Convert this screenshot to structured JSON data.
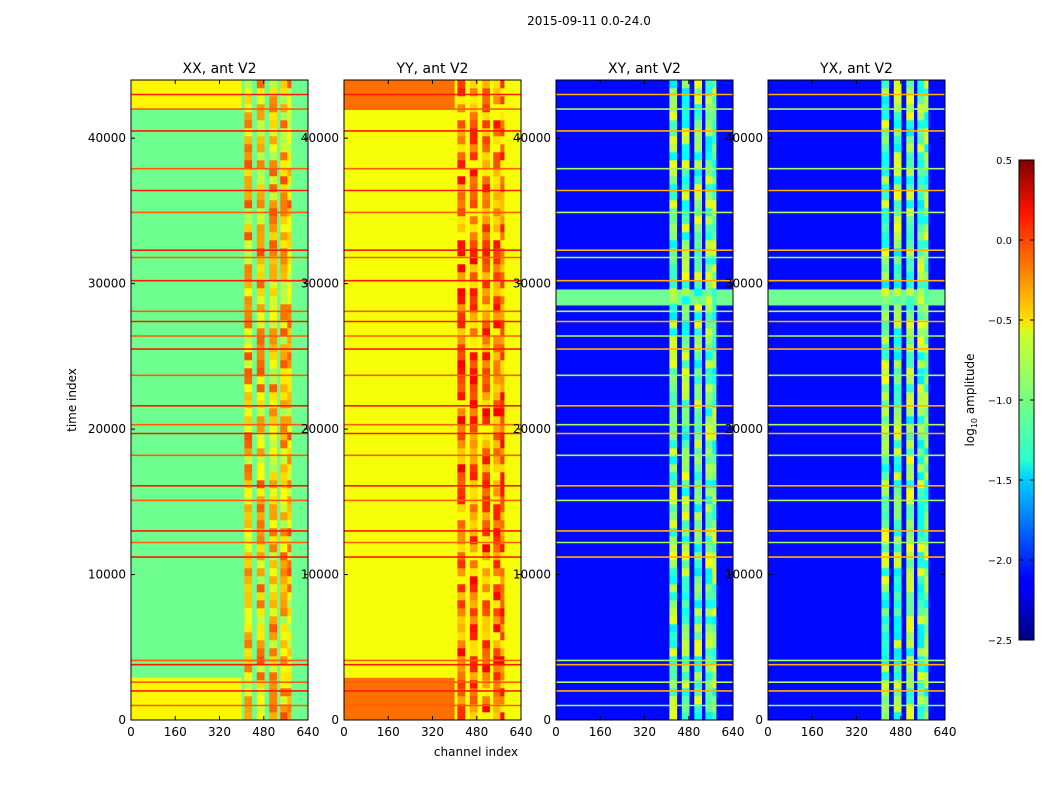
{
  "figure_title": "2015-09-11 0.0-24.0",
  "chart_data": {
    "type": "heatmap",
    "title": "2015-09-11 0.0-24.0",
    "xlabel": "channel index",
    "ylabel": "time index",
    "xlim": [
      0,
      640
    ],
    "ylim": [
      0,
      44000
    ],
    "x_ticks": [
      0,
      160,
      320,
      480,
      640
    ],
    "x_tick_labels": [
      "0",
      "160",
      "320",
      "480",
      "640"
    ],
    "y_ticks": [
      0,
      10000,
      20000,
      30000,
      40000
    ],
    "y_tick_labels": [
      "0",
      "10000",
      "20000",
      "30000",
      "40000"
    ],
    "panels": [
      {
        "title": "XX, ant V2",
        "pol": "XX",
        "baseline": -1.05,
        "band_level": -0.45
      },
      {
        "title": "YY, ant V2",
        "pol": "YY",
        "baseline": -0.65,
        "band_level": -0.2
      },
      {
        "title": "XY, ant V2",
        "pol": "XY",
        "baseline": -2.1,
        "band_level": -1.0
      },
      {
        "title": "YX, ant V2",
        "pol": "YX",
        "baseline": -2.1,
        "band_level": -1.0
      }
    ],
    "rfi_channel_range": [
      410,
      580
    ],
    "colorbar": {
      "label_main": "log",
      "label_sub": "10",
      "label_rest": " amplitude",
      "range": [
        -2.5,
        0.5
      ],
      "ticks": [
        0.5,
        0.0,
        -0.5,
        -1.0,
        -1.5,
        -2.0,
        -2.5
      ],
      "tick_labels": [
        "0.5",
        "0.0",
        "−0.5",
        "−1.0",
        "−1.5",
        "−2.0",
        "−2.5"
      ],
      "colormap": "jet"
    },
    "flagged_time_rows": [
      1000,
      2000,
      2600,
      3800,
      4100,
      11200,
      12200,
      13000,
      15100,
      16100,
      18200,
      19700,
      20300,
      21600,
      23700,
      25500,
      26400,
      27400,
      28100,
      30200,
      31800,
      32300,
      34900,
      36400,
      37900,
      40500,
      42000,
      43000
    ]
  }
}
